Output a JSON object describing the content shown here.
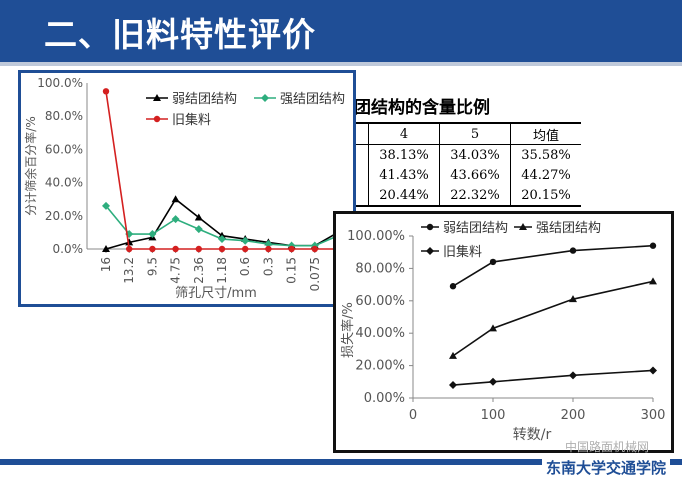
{
  "slide": {
    "title": "二、旧料特性评价",
    "footer": "东南大学交通学院",
    "watermark": "中国路面机械网"
  },
  "table": {
    "heading_visible": "团结构的含量比例",
    "headers": [
      "",
      "4",
      "5",
      "均值"
    ],
    "rows": [
      [
        "%",
        "38.13%",
        "34.03%",
        "35.58%"
      ],
      [
        "%",
        "41.43%",
        "43.66%",
        "44.27%"
      ],
      [
        "%",
        "20.44%",
        "22.32%",
        "20.15%"
      ]
    ]
  },
  "colors": {
    "title_bar": "#1f4e96",
    "weak": "#000000",
    "strong": "#2eae7e",
    "old": "#d42020"
  },
  "chart_data": [
    {
      "type": "line",
      "xlabel": "筛孔尺寸/mm",
      "ylabel": "分计筛余百分率/%",
      "categories": [
        "16",
        "13.2",
        "9.5",
        "4.75",
        "2.36",
        "1.18",
        "0.6",
        "0.3",
        "0.15",
        "0.075",
        ""
      ],
      "ylim": [
        0,
        100
      ],
      "yticks": [
        "0.0%",
        "20.0%",
        "40.0%",
        "60.0%",
        "80.0%",
        "100.0%"
      ],
      "yticks_values": [
        0,
        20,
        40,
        60,
        80,
        100
      ],
      "legend_position": "top",
      "series": [
        {
          "name": "弱结团结构",
          "marker": "triangle",
          "values": [
            0,
            4,
            7,
            30,
            19,
            8,
            6,
            4,
            2,
            2,
            10
          ]
        },
        {
          "name": "强结团结构",
          "marker": "diamond",
          "values": [
            26,
            9,
            9,
            18,
            12,
            6,
            5,
            3,
            2,
            2,
            8
          ]
        },
        {
          "name": "旧集料",
          "marker": "circle",
          "values": [
            95,
            0,
            0,
            0,
            0,
            0,
            0,
            0,
            0,
            0,
            0
          ]
        }
      ]
    },
    {
      "type": "line",
      "xlabel": "转数/r",
      "ylabel": "损失率/%",
      "xlim": [
        0,
        300
      ],
      "xticks": [
        0,
        100,
        200,
        300
      ],
      "ylim": [
        0,
        100
      ],
      "yticks": [
        "0.00%",
        "20.00%",
        "40.00%",
        "60.00%",
        "80.00%",
        "100.00%"
      ],
      "yticks_values": [
        0,
        20,
        40,
        60,
        80,
        100
      ],
      "legend_position": "top",
      "series": [
        {
          "name": "弱结团结构",
          "marker": "circle",
          "x": [
            50,
            100,
            200,
            300
          ],
          "values": [
            69,
            84,
            91,
            94
          ]
        },
        {
          "name": "强结团结构",
          "marker": "triangle",
          "x": [
            50,
            100,
            200,
            300
          ],
          "values": [
            26,
            43,
            61,
            72
          ]
        },
        {
          "name": "旧集料",
          "marker": "diamond",
          "x": [
            50,
            100,
            200,
            300
          ],
          "values": [
            8,
            10,
            14,
            17
          ]
        }
      ]
    }
  ]
}
